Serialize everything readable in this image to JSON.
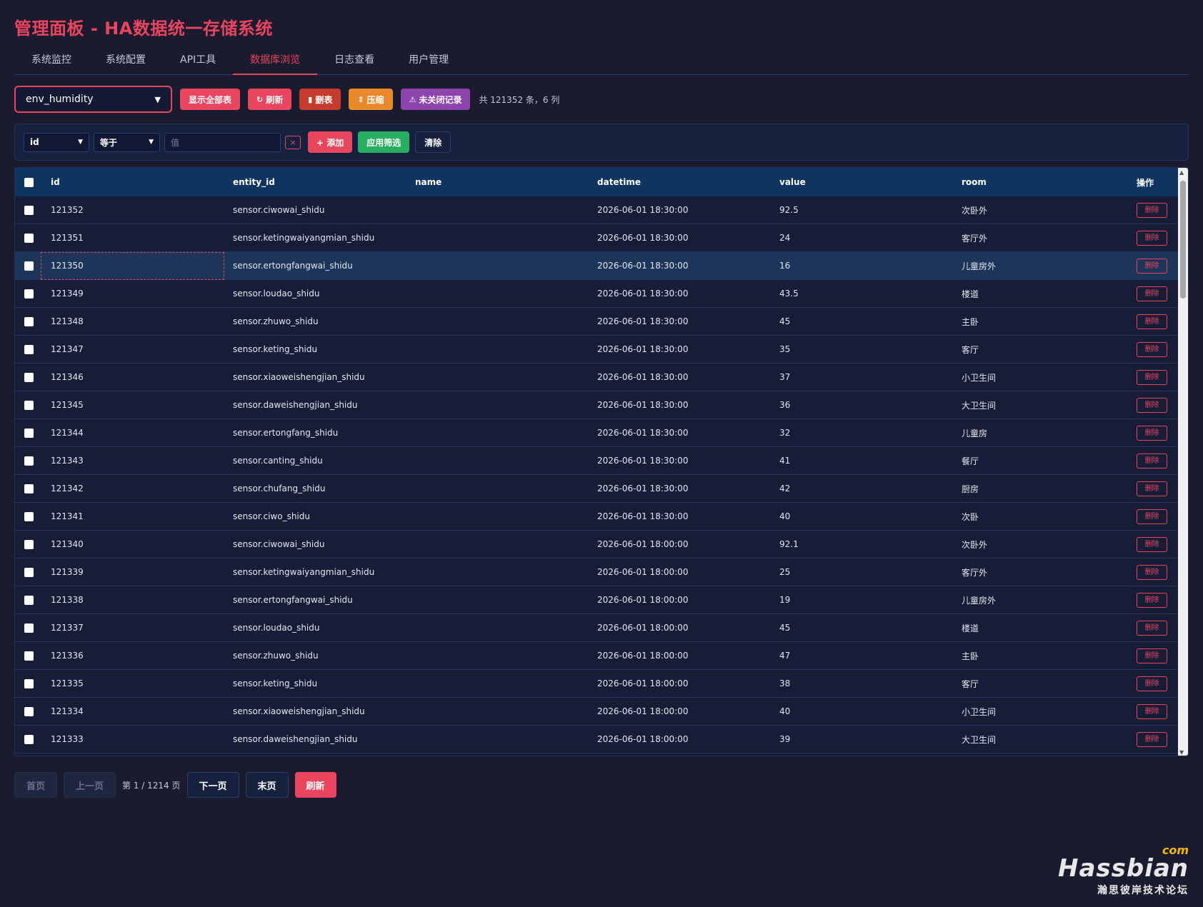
{
  "title": "管理面板 - HA数据统一存储系统",
  "tabs": [
    {
      "label": "系统监控"
    },
    {
      "label": "系统配置"
    },
    {
      "label": "API工具"
    },
    {
      "label": "数据库浏览"
    },
    {
      "label": "日志查看"
    },
    {
      "label": "用户管理"
    }
  ],
  "active_tab": "数据库浏览",
  "toolbar": {
    "table_select": "env_humidity",
    "show_all_tables": "显示全部表",
    "refresh": "刷新",
    "drop_table": "删表",
    "compress": "压缩",
    "unclosed_records": "未关闭记录",
    "count_text": "共 121352 条，6 列"
  },
  "filter": {
    "field": "id",
    "operator": "等于",
    "value_placeholder": "值",
    "remove": "×",
    "add": "+ 添加",
    "apply": "应用筛选",
    "clear": "清除"
  },
  "table": {
    "columns": [
      "id",
      "entity_id",
      "name",
      "datetime",
      "value",
      "room",
      "操作"
    ],
    "delete_label": "删除",
    "rows": [
      {
        "id": "121352",
        "entity_id": "sensor.ciwowai_shidu",
        "name": "",
        "datetime": "2026-06-01 18:30:00",
        "value": "92.5",
        "room": "次卧外"
      },
      {
        "id": "121351",
        "entity_id": "sensor.ketingwaiyangmian_shidu",
        "name": "",
        "datetime": "2026-06-01 18:30:00",
        "value": "24",
        "room": "客厅外"
      },
      {
        "id": "121350",
        "entity_id": "sensor.ertongfangwai_shidu",
        "name": "",
        "datetime": "2026-06-01 18:30:00",
        "value": "16",
        "room": "儿童房外"
      },
      {
        "id": "121349",
        "entity_id": "sensor.loudao_shidu",
        "name": "",
        "datetime": "2026-06-01 18:30:00",
        "value": "43.5",
        "room": "楼道"
      },
      {
        "id": "121348",
        "entity_id": "sensor.zhuwo_shidu",
        "name": "",
        "datetime": "2026-06-01 18:30:00",
        "value": "45",
        "room": "主卧"
      },
      {
        "id": "121347",
        "entity_id": "sensor.keting_shidu",
        "name": "",
        "datetime": "2026-06-01 18:30:00",
        "value": "35",
        "room": "客厅"
      },
      {
        "id": "121346",
        "entity_id": "sensor.xiaoweishengjian_shidu",
        "name": "",
        "datetime": "2026-06-01 18:30:00",
        "value": "37",
        "room": "小卫生间"
      },
      {
        "id": "121345",
        "entity_id": "sensor.daweishengjian_shidu",
        "name": "",
        "datetime": "2026-06-01 18:30:00",
        "value": "36",
        "room": "大卫生间"
      },
      {
        "id": "121344",
        "entity_id": "sensor.ertongfang_shidu",
        "name": "",
        "datetime": "2026-06-01 18:30:00",
        "value": "32",
        "room": "儿童房"
      },
      {
        "id": "121343",
        "entity_id": "sensor.canting_shidu",
        "name": "",
        "datetime": "2026-06-01 18:30:00",
        "value": "41",
        "room": "餐厅"
      },
      {
        "id": "121342",
        "entity_id": "sensor.chufang_shidu",
        "name": "",
        "datetime": "2026-06-01 18:30:00",
        "value": "42",
        "room": "厨房"
      },
      {
        "id": "121341",
        "entity_id": "sensor.ciwo_shidu",
        "name": "",
        "datetime": "2026-06-01 18:30:00",
        "value": "40",
        "room": "次卧"
      },
      {
        "id": "121340",
        "entity_id": "sensor.ciwowai_shidu",
        "name": "",
        "datetime": "2026-06-01 18:00:00",
        "value": "92.1",
        "room": "次卧外"
      },
      {
        "id": "121339",
        "entity_id": "sensor.ketingwaiyangmian_shidu",
        "name": "",
        "datetime": "2026-06-01 18:00:00",
        "value": "25",
        "room": "客厅外"
      },
      {
        "id": "121338",
        "entity_id": "sensor.ertongfangwai_shidu",
        "name": "",
        "datetime": "2026-06-01 18:00:00",
        "value": "19",
        "room": "儿童房外"
      },
      {
        "id": "121337",
        "entity_id": "sensor.loudao_shidu",
        "name": "",
        "datetime": "2026-06-01 18:00:00",
        "value": "45",
        "room": "楼道"
      },
      {
        "id": "121336",
        "entity_id": "sensor.zhuwo_shidu",
        "name": "",
        "datetime": "2026-06-01 18:00:00",
        "value": "47",
        "room": "主卧"
      },
      {
        "id": "121335",
        "entity_id": "sensor.keting_shidu",
        "name": "",
        "datetime": "2026-06-01 18:00:00",
        "value": "38",
        "room": "客厅"
      },
      {
        "id": "121334",
        "entity_id": "sensor.xiaoweishengjian_shidu",
        "name": "",
        "datetime": "2026-06-01 18:00:00",
        "value": "40",
        "room": "小卫生间"
      },
      {
        "id": "121333",
        "entity_id": "sensor.daweishengjian_shidu",
        "name": "",
        "datetime": "2026-06-01 18:00:00",
        "value": "39",
        "room": "大卫生间"
      }
    ]
  },
  "pagination": {
    "first": "首页",
    "prev": "上一页",
    "info": "第 1 / 1214 页",
    "next": "下一页",
    "last": "末页",
    "refresh": "刷新"
  },
  "watermark": {
    "com": "com",
    "main": "Hassbian",
    "sub": "瀚思彼岸技术论坛"
  },
  "colors": {
    "accent": "#e9455f",
    "background": "#1a1b2e",
    "header": "#0f3460",
    "green": "#27ae60",
    "orange": "#e88a2a",
    "purple": "#8e44ad"
  }
}
